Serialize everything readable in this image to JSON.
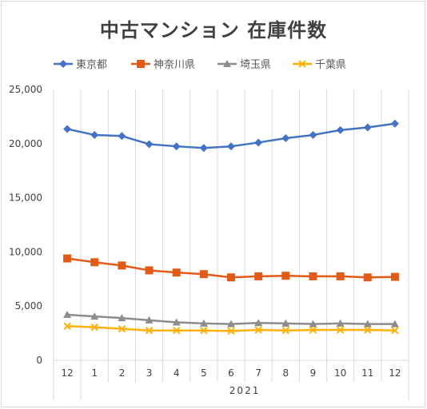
{
  "chart_data": {
    "type": "line",
    "title": "中古マンション 在庫件数",
    "categories": [
      "12",
      "1",
      "2",
      "3",
      "4",
      "5",
      "6",
      "7",
      "8",
      "9",
      "10",
      "11",
      "12"
    ],
    "year_label": "2021",
    "ylim": [
      0,
      25000
    ],
    "y_ticks": [
      "0",
      "5,000",
      "10,000",
      "15,000",
      "20,000",
      "25,000"
    ],
    "y_tick_values": [
      0,
      5000,
      10000,
      15000,
      20000,
      25000
    ],
    "grid": "vertical",
    "legend_position": "top",
    "series": [
      {
        "name": "東京都",
        "color": "#4472C4",
        "marker": "diamond",
        "values": [
          21350,
          20800,
          20700,
          19950,
          19750,
          19600,
          19750,
          20100,
          20500,
          20800,
          21250,
          21500,
          21850
        ]
      },
      {
        "name": "神奈川県",
        "color": "#E15A17",
        "marker": "square",
        "values": [
          9400,
          9050,
          8750,
          8300,
          8100,
          7950,
          7650,
          7750,
          7800,
          7750,
          7750,
          7650,
          7700
        ]
      },
      {
        "name": "埼玉県",
        "color": "#8C8C8C",
        "marker": "triangle",
        "values": [
          4200,
          4050,
          3900,
          3700,
          3500,
          3400,
          3350,
          3450,
          3400,
          3350,
          3400,
          3350,
          3350
        ]
      },
      {
        "name": "千葉県",
        "color": "#FFB000",
        "marker": "x",
        "values": [
          3150,
          3050,
          2900,
          2750,
          2750,
          2750,
          2700,
          2800,
          2750,
          2800,
          2800,
          2800,
          2750
        ]
      }
    ]
  }
}
